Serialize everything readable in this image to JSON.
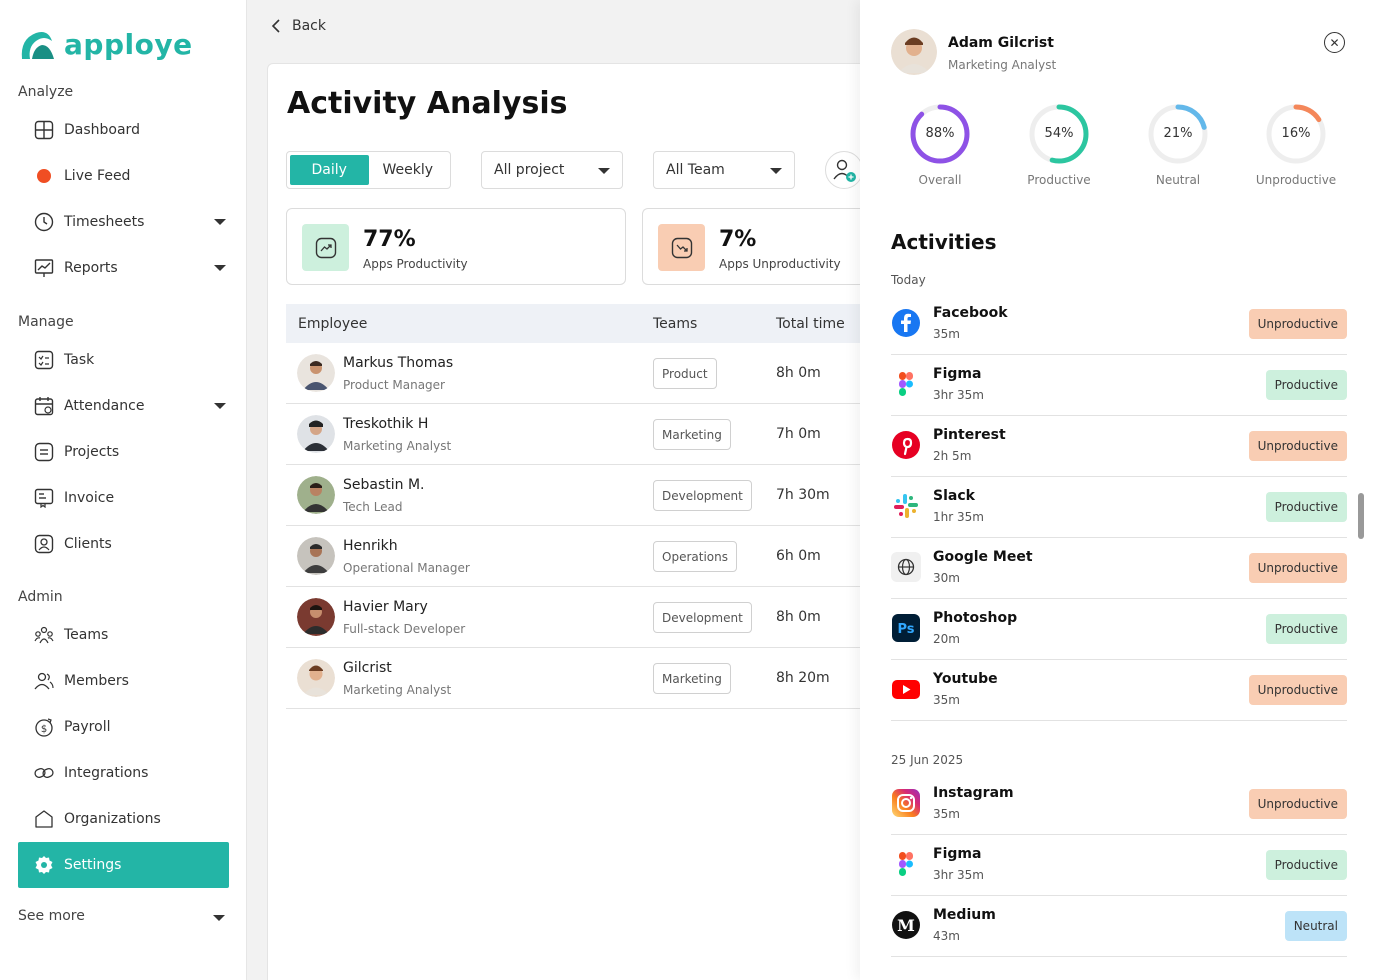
{
  "brand": {
    "name": "apploye",
    "color": "#23b5a6"
  },
  "sidebar": {
    "analyze_label": "Analyze",
    "manage_label": "Manage",
    "admin_label": "Admin",
    "analyze": [
      {
        "label": "Dashboard",
        "icon": "dashboard-icon"
      },
      {
        "label": "Live Feed",
        "icon": "live-dot-icon"
      },
      {
        "label": "Timesheets",
        "icon": "clock-icon"
      },
      {
        "label": "Reports",
        "icon": "report-icon"
      }
    ],
    "manage": [
      {
        "label": "Task",
        "icon": "task-icon"
      },
      {
        "label": "Attendance",
        "icon": "calendar-icon"
      },
      {
        "label": "Projects",
        "icon": "project-icon"
      },
      {
        "label": "Invoice",
        "icon": "invoice-icon"
      },
      {
        "label": "Clients",
        "icon": "client-icon"
      }
    ],
    "admin": [
      {
        "label": "Teams",
        "icon": "teams-icon"
      },
      {
        "label": "Members",
        "icon": "members-icon"
      },
      {
        "label": "Payroll",
        "icon": "payroll-icon"
      },
      {
        "label": "Integrations",
        "icon": "integrations-icon"
      },
      {
        "label": "Organizations",
        "icon": "organizations-icon"
      },
      {
        "label": "Settings",
        "icon": "gear-icon"
      }
    ],
    "see_more": "See more"
  },
  "main": {
    "back_label": "Back",
    "title": "Activity Analysis",
    "toggle": {
      "daily": "Daily",
      "weekly": "Weekly",
      "selected": "Daily"
    },
    "project_filter": "All project",
    "team_filter": "All Team",
    "stats": [
      {
        "value": "77%",
        "label": "Apps Productivity",
        "color": "#cdf0dd"
      },
      {
        "value": "7%",
        "label": "Apps Unproductivity",
        "color": "#f9cdb3"
      }
    ],
    "table": {
      "headers": {
        "employee": "Employee",
        "teams": "Teams",
        "total": "Total time"
      },
      "rows": [
        {
          "name": "Markus Thomas",
          "role": "Product Manager",
          "team": "Product",
          "time": "8h 0m"
        },
        {
          "name": "Treskothik H",
          "role": "Marketing Analyst",
          "team": "Marketing",
          "time": "7h 0m"
        },
        {
          "name": "Sebastin M.",
          "role": "Tech Lead",
          "team": "Development",
          "time": "7h 30m"
        },
        {
          "name": "Henrikh",
          "role": "Operational Manager",
          "team": "Operations",
          "time": "6h 0m"
        },
        {
          "name": "Havier Mary",
          "role": "Full-stack Developer",
          "team": "Development",
          "time": "8h 0m"
        },
        {
          "name": "Gilcrist",
          "role": "Marketing Analyst",
          "team": "Marketing",
          "time": "8h 20m"
        }
      ]
    }
  },
  "panel": {
    "name": "Adam Gilcrist",
    "role": "Marketing Analyst",
    "rings": [
      {
        "label": "Overall",
        "value": "88%",
        "pct": 0.88,
        "color": "#8e52e6"
      },
      {
        "label": "Productive",
        "value": "54%",
        "pct": 0.54,
        "color": "#2cc6a0"
      },
      {
        "label": "Neutral",
        "value": "21%",
        "pct": 0.21,
        "color": "#63b8ea"
      },
      {
        "label": "Unproductive",
        "value": "16%",
        "pct": 0.16,
        "color": "#f4875a"
      }
    ],
    "activities_title": "Activities",
    "today_label": "Today",
    "date2_label": "25 Jun 2025",
    "today": [
      {
        "app": "Facebook",
        "dur": "35m",
        "status": "Unproductive",
        "icon": "facebook-icon"
      },
      {
        "app": "Figma",
        "dur": "3hr 35m",
        "status": "Productive",
        "icon": "figma-icon"
      },
      {
        "app": "Pinterest",
        "dur": "2h 5m",
        "status": "Unproductive",
        "icon": "pinterest-icon"
      },
      {
        "app": "Slack",
        "dur": "1hr 35m",
        "status": "Productive",
        "icon": "slack-icon"
      },
      {
        "app": "Google Meet",
        "dur": "30m",
        "status": "Unproductive",
        "icon": "globe-icon"
      },
      {
        "app": "Photoshop",
        "dur": "20m",
        "status": "Productive",
        "icon": "photoshop-icon"
      },
      {
        "app": "Youtube",
        "dur": "35m",
        "status": "Unproductive",
        "icon": "youtube-icon"
      }
    ],
    "earlier": [
      {
        "app": "Instagram",
        "dur": "35m",
        "status": "Unproductive",
        "icon": "instagram-icon"
      },
      {
        "app": "Figma",
        "dur": "3hr 35m",
        "status": "Productive",
        "icon": "figma-icon"
      },
      {
        "app": "Medium",
        "dur": "43m",
        "status": "Neutral",
        "icon": "medium-icon"
      }
    ]
  }
}
